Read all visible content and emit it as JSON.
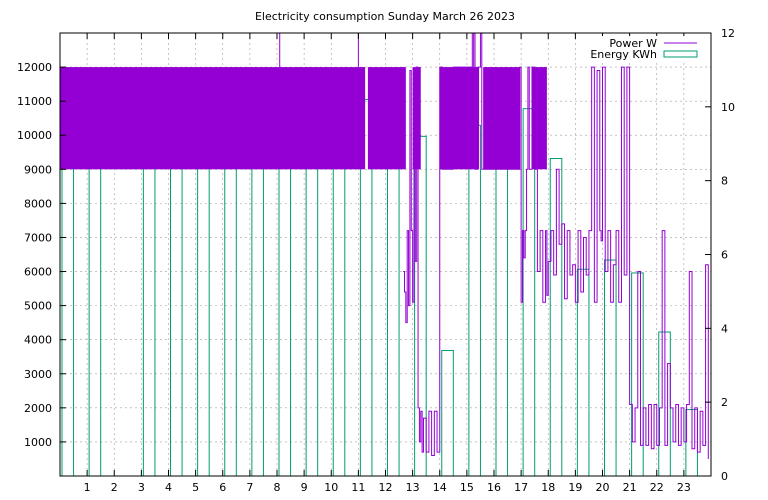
{
  "chart_data": {
    "type": "bar+line",
    "title": "Electricity consumption Sunday March 26 2023",
    "x_ticks": [
      "1",
      "2",
      "3",
      "4",
      "5",
      "6",
      "7",
      "8",
      "9",
      "10",
      "11",
      "12",
      "13",
      "14",
      "15",
      "16",
      "17",
      "18",
      "19",
      "20",
      "21",
      "22",
      "23"
    ],
    "y_ticks": [
      "1000",
      "2000",
      "3000",
      "4000",
      "5000",
      "6000",
      "7000",
      "8000",
      "9000",
      "10000",
      "11000",
      "12000"
    ],
    "y2_ticks": [
      "0",
      "2",
      "4",
      "6",
      "8",
      "10",
      "12"
    ],
    "xlim": [
      0,
      24
    ],
    "ylim": [
      0,
      13000
    ],
    "y2lim": [
      0,
      12
    ],
    "grid": true,
    "legend_position": "top-right",
    "colors": {
      "power": "#9400d3",
      "energy": "#009e73"
    },
    "series": [
      {
        "name": "Power W",
        "axis": "y",
        "style": "line",
        "bands": [
          {
            "x0": 0.0,
            "x1": 11.25,
            "low": 9000,
            "high": 12000
          },
          {
            "x0": 11.35,
            "x1": 12.75,
            "low": 9000,
            "high": 12000
          },
          {
            "x0": 13.0,
            "x1": 13.3,
            "low": 9000,
            "high": 12000
          },
          {
            "x0": 14.0,
            "x1": 15.45,
            "low": 9000,
            "high": 12000
          },
          {
            "x0": 15.6,
            "x1": 16.95,
            "low": 9000,
            "high": 12000
          },
          {
            "x0": 17.4,
            "x1": 17.95,
            "low": 9000,
            "high": 12000
          }
        ],
        "x": [
          12.65,
          12.7,
          12.75,
          12.8,
          12.85,
          12.9,
          12.95,
          13.0,
          13.05,
          13.1,
          13.15,
          13.2,
          13.25,
          13.3,
          13.35,
          13.4,
          13.5,
          13.6,
          13.7,
          13.8,
          13.9,
          14.0,
          14.1,
          14.5,
          15.2,
          15.3,
          15.4,
          15.5,
          15.55,
          16.95,
          17.0,
          17.05,
          17.1,
          17.15,
          17.2,
          17.25,
          17.3,
          17.4,
          17.5,
          17.6,
          17.7,
          17.8,
          17.9,
          17.95,
          18.0,
          18.1,
          18.2,
          18.3,
          18.4,
          18.5,
          18.6,
          18.7,
          18.8,
          18.9,
          19.0,
          19.1,
          19.2,
          19.3,
          19.4,
          19.5,
          19.6,
          19.7,
          19.8,
          19.9,
          19.95,
          20.0,
          20.1,
          20.2,
          20.3,
          20.4,
          20.5,
          20.6,
          20.7,
          20.8,
          20.9,
          21.0,
          21.1,
          21.2,
          21.3,
          21.4,
          21.5,
          21.6,
          21.7,
          21.8,
          21.9,
          22.0,
          22.1,
          22.2,
          22.3,
          22.4,
          22.5,
          22.6,
          22.7,
          22.8,
          22.9,
          23.0,
          23.1,
          23.2,
          23.3,
          23.4,
          23.5,
          23.6,
          23.7,
          23.8,
          23.9
        ],
        "y": [
          6000,
          5400,
          4500,
          7200,
          5000,
          11900,
          7200,
          5100,
          11900,
          6300,
          12000,
          2000,
          1000,
          1900,
          700,
          1700,
          700,
          1900,
          600,
          1900,
          700,
          12000,
          9000,
          12000,
          13000,
          9000,
          12000,
          13000,
          9000,
          12000,
          5100,
          7200,
          6400,
          7200,
          9000,
          12000,
          9000,
          12000,
          9000,
          6000,
          7200,
          5100,
          7200,
          5300,
          6300,
          7200,
          5900,
          9000,
          6800,
          7400,
          5200,
          7200,
          5900,
          6200,
          5100,
          7200,
          5400,
          7000,
          5900,
          7200,
          12000,
          5100,
          11900,
          7200,
          6900,
          12000,
          6000,
          7200,
          5100,
          6200,
          7200,
          5100,
          12000,
          5900,
          12000,
          2100,
          1000,
          2000,
          6000,
          900,
          2000,
          900,
          2100,
          800,
          2100,
          900,
          2000,
          7200,
          900,
          3300,
          2000,
          1000,
          2100,
          900,
          2000,
          1000,
          2100,
          6000,
          800,
          2000,
          700,
          1900,
          900,
          6200,
          500
        ]
      },
      {
        "name": "Energy KWh",
        "axis": "y2",
        "style": "boxes",
        "x": [
          0,
          1,
          2,
          3,
          4,
          5,
          6,
          7,
          8,
          9,
          10,
          11,
          12,
          13,
          14,
          15,
          16,
          17,
          18,
          19,
          20,
          21,
          22,
          23
        ],
        "values": [
          9.9,
          9.9,
          0,
          10.1,
          10.05,
          10.05,
          10.05,
          9.95,
          9.95,
          10.05,
          10.05,
          10.2,
          10.05,
          9.2,
          3.4,
          9.5,
          10.95,
          9.95,
          8.6,
          5.6,
          5.85,
          5.5,
          3.9,
          1.8
        ]
      }
    ]
  }
}
